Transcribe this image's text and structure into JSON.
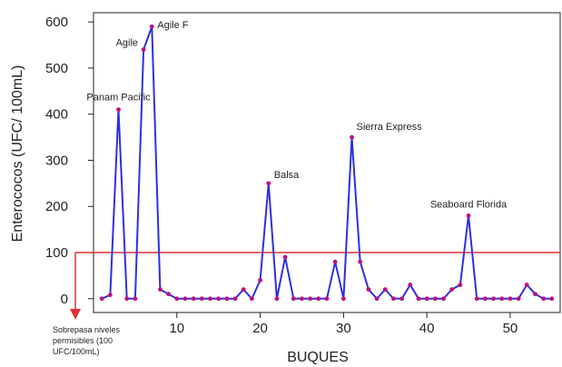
{
  "chart_data": {
    "type": "line",
    "xlabel": "BUQUES",
    "ylabel": "Enterococos (UFC/ 100mL)",
    "xlim": [
      0,
      56
    ],
    "ylim": [
      -30,
      620
    ],
    "xticks": [
      10,
      20,
      30,
      40,
      50
    ],
    "yticks": [
      0,
      100,
      200,
      300,
      400,
      500,
      600
    ],
    "grid": false,
    "threshold": {
      "value": 100,
      "color": "#e03030"
    },
    "series": [
      {
        "color": "#2f2fe0",
        "marker_color": "#c0107a",
        "x": [
          1,
          2,
          3,
          4,
          5,
          6,
          7,
          8,
          9,
          10,
          11,
          12,
          13,
          14,
          15,
          16,
          17,
          18,
          19,
          20,
          21,
          22,
          23,
          24,
          25,
          26,
          27,
          28,
          29,
          30,
          31,
          32,
          33,
          34,
          35,
          36,
          37,
          38,
          39,
          40,
          41,
          42,
          43,
          44,
          45,
          46,
          47,
          48,
          49,
          50,
          51,
          52,
          53,
          54,
          55
        ],
        "y": [
          0,
          8,
          410,
          0,
          0,
          540,
          590,
          20,
          10,
          0,
          0,
          0,
          0,
          0,
          0,
          0,
          0,
          20,
          0,
          40,
          250,
          0,
          90,
          0,
          0,
          0,
          0,
          0,
          80,
          0,
          350,
          80,
          20,
          0,
          20,
          0,
          0,
          30,
          0,
          0,
          0,
          0,
          20,
          30,
          180,
          0,
          0,
          0,
          0,
          0,
          0,
          30,
          10,
          0,
          0
        ]
      }
    ],
    "annotations": [
      {
        "text": "Panam Pacific",
        "x": 3,
        "y": 410
      },
      {
        "text": "Agile",
        "x": 6,
        "y": 540
      },
      {
        "text": "Agile F",
        "x": 7,
        "y": 590
      },
      {
        "text": "Balsa",
        "x": 21,
        "y": 250
      },
      {
        "text": "Sierra Express",
        "x": 31,
        "y": 350
      },
      {
        "text": "Seaboard Florida",
        "x": 45,
        "y": 180
      }
    ],
    "note_lines": [
      "Sobrepasa niveles",
      "permisibles (100",
      "UFC/100mL)"
    ]
  }
}
